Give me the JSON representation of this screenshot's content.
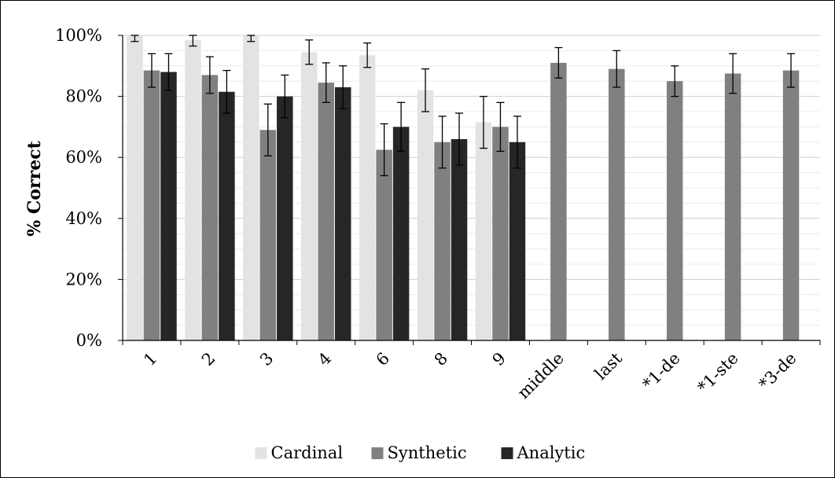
{
  "chart_data": {
    "type": "bar",
    "title": "",
    "xlabel": "",
    "ylabel": "% Correct",
    "ylim": [
      0,
      100
    ],
    "y_ticks": [
      "0%",
      "20%",
      "40%",
      "60%",
      "80%",
      "100%"
    ],
    "y_tick_values": [
      0,
      20,
      40,
      60,
      80,
      100
    ],
    "grid": true,
    "legend_position": "bottom",
    "categories": [
      "1",
      "2",
      "3",
      "4",
      "6",
      "8",
      "9",
      "middle",
      "last",
      "*1-de",
      "*1-ste",
      "*3-de"
    ],
    "series": [
      {
        "name": "Cardinal",
        "color": "#e3e3e3",
        "values": [
          100,
          98.5,
          100,
          94.5,
          93.5,
          82,
          71.5,
          null,
          null,
          null,
          null,
          null
        ],
        "error": [
          2,
          2,
          2,
          4,
          4,
          7,
          8.5,
          null,
          null,
          null,
          null,
          null
        ]
      },
      {
        "name": "Synthetic",
        "color": "#808080",
        "values": [
          88.5,
          87,
          69,
          84.5,
          62.5,
          65,
          70,
          91,
          89,
          85,
          87.5,
          88.5
        ],
        "error": [
          5.5,
          6,
          8.5,
          6.5,
          8.5,
          8.5,
          8,
          5,
          6,
          5,
          6.5,
          5.5
        ]
      },
      {
        "name": "Analytic",
        "color": "#262626",
        "values": [
          88,
          81.5,
          80,
          83,
          70,
          66,
          65,
          null,
          null,
          null,
          null,
          null
        ],
        "error": [
          6,
          7,
          7,
          7,
          8,
          8.5,
          8.5,
          null,
          null,
          null,
          null,
          null
        ]
      }
    ]
  }
}
